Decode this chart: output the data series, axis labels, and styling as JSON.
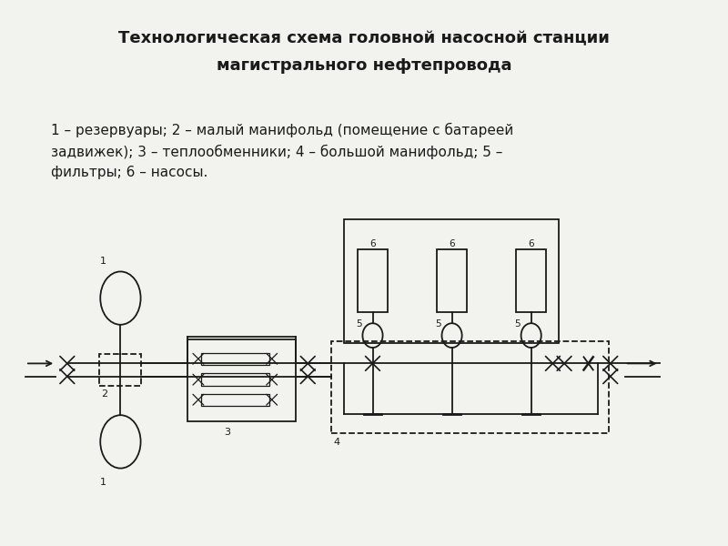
{
  "title_line1": "Технологическая схема головной насосной станции",
  "title_line2": "магистрального нефтепровода",
  "legend_text": "1 – резервуары; 2 – малый манифольд (помещение с батареей\nзадвижек); 3 – теплообменники; 4 – большой манифольд; 5 –\nфильтры; 6 – насосы.",
  "bg_color": "#f2f2ee",
  "line_color": "#1a1a1a"
}
